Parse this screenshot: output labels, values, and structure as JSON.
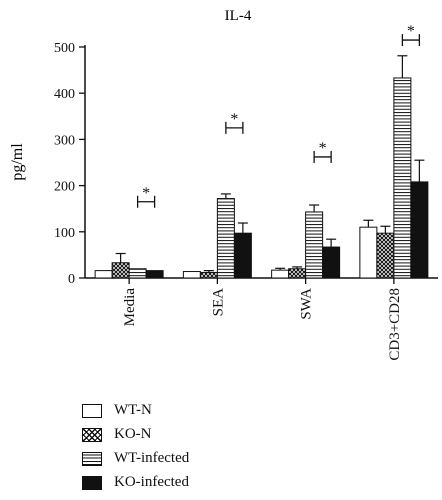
{
  "chart_data": {
    "type": "bar",
    "title": "IL-4",
    "ylabel": "pg/ml",
    "xlabel": "",
    "ylim": [
      0,
      500
    ],
    "yticks": [
      0,
      100,
      200,
      300,
      400,
      500
    ],
    "categories": [
      "Media",
      "SEA",
      "SWA",
      "CD3+CD28"
    ],
    "series": [
      {
        "name": "WT-N",
        "fill": "white",
        "values": [
          16,
          14,
          17,
          110
        ],
        "errors": [
          0,
          0,
          4,
          15
        ]
      },
      {
        "name": "KO-N",
        "fill": "checker",
        "values": [
          33,
          12,
          20,
          97
        ],
        "errors": [
          20,
          4,
          4,
          15
        ]
      },
      {
        "name": "WT-infected",
        "fill": "horizontal-lines",
        "values": [
          20,
          172,
          143,
          433
        ],
        "errors": [
          0,
          10,
          15,
          48
        ]
      },
      {
        "name": "KO-infected",
        "fill": "black",
        "values": [
          16,
          97,
          67,
          208
        ],
        "errors": [
          0,
          22,
          17,
          47
        ]
      }
    ],
    "annotations": [
      {
        "category": "Media",
        "text": "*",
        "y": 165
      },
      {
        "category": "SEA",
        "text": "*",
        "y": 325
      },
      {
        "category": "SWA",
        "text": "*",
        "y": 262
      },
      {
        "category": "CD3+CD28",
        "text": "*",
        "y": 515
      }
    ],
    "legend_position": "bottom-left",
    "colors": {
      "ink": "#111111",
      "background": "#ffffff"
    }
  }
}
